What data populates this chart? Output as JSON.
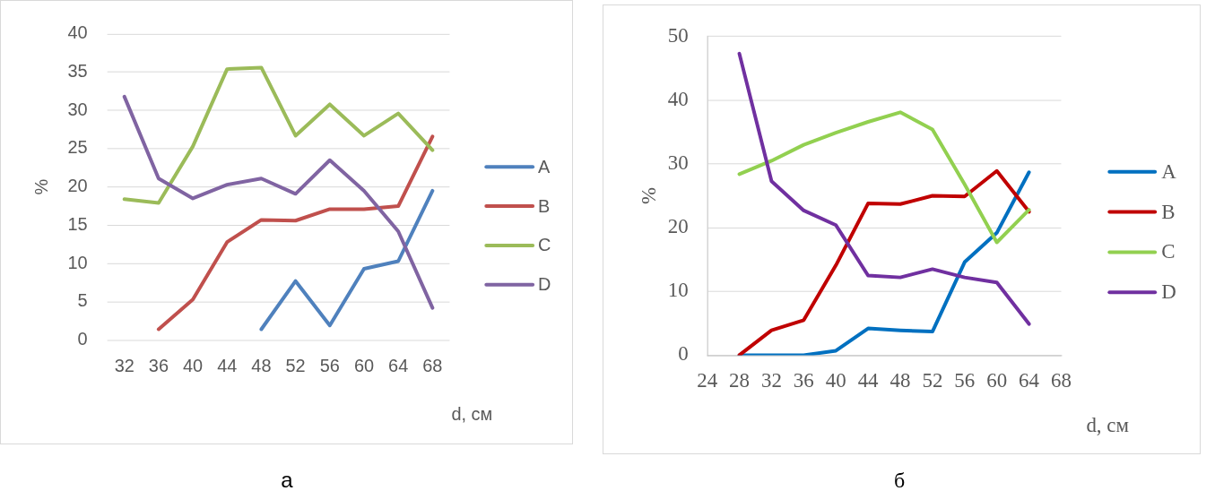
{
  "chart_data": [
    {
      "type": "line",
      "ylabel": "%",
      "xlabel": "d, см",
      "categories": [
        "32",
        "36",
        "40",
        "44",
        "48",
        "52",
        "56",
        "60",
        "64",
        "68"
      ],
      "series": [
        {
          "name": "A",
          "color": "#4f81bd",
          "values": [
            null,
            null,
            null,
            null,
            1.4,
            7.7,
            1.9,
            9.3,
            10.3,
            19.5
          ]
        },
        {
          "name": "B",
          "color": "#c0504d",
          "values": [
            null,
            1.4,
            5.3,
            12.8,
            15.7,
            15.6,
            17.1,
            17.1,
            17.5,
            26.6
          ]
        },
        {
          "name": "C",
          "color": "#9bbb59",
          "values": [
            18.4,
            17.9,
            25.3,
            35.4,
            35.6,
            26.7,
            30.8,
            26.7,
            29.6,
            24.8
          ]
        },
        {
          "name": "D",
          "color": "#8064a2",
          "values": [
            31.8,
            21.1,
            18.5,
            20.3,
            21.1,
            19.1,
            23.5,
            19.5,
            14.2,
            4.2
          ]
        }
      ],
      "ylim": [
        0,
        40
      ],
      "yticks": [
        0,
        5,
        10,
        15,
        20,
        25,
        30,
        35,
        40
      ],
      "grid": "y",
      "legend": "right",
      "marker": "none",
      "annotations": [
        "а"
      ]
    },
    {
      "type": "line",
      "ylabel": "%",
      "xlabel": "d, см",
      "x": [
        28,
        32,
        36,
        40,
        44,
        48,
        52,
        56,
        60,
        64
      ],
      "xlim": [
        24,
        68
      ],
      "xticks": [
        24,
        28,
        32,
        36,
        40,
        44,
        48,
        52,
        56,
        60,
        64,
        68
      ],
      "ylim": [
        0,
        50
      ],
      "yticks": [
        0,
        10,
        20,
        30,
        40,
        50
      ],
      "series": [
        {
          "name": "A",
          "color": "#0070c0",
          "values": [
            0,
            0,
            0,
            0.7,
            4.2,
            3.9,
            3.7,
            14.6,
            19.2,
            28.7
          ]
        },
        {
          "name": "B",
          "color": "#c00000",
          "values": [
            0,
            3.9,
            5.5,
            14.1,
            23.8,
            23.7,
            25.0,
            24.9,
            28.9,
            22.5
          ]
        },
        {
          "name": "C",
          "color": "#92d050",
          "values": [
            28.4,
            30.5,
            33.0,
            34.9,
            36.6,
            38.1,
            35.4,
            26.8,
            17.7,
            22.8
          ]
        },
        {
          "name": "D",
          "color": "#7030a0",
          "values": [
            47.3,
            27.3,
            22.7,
            20.4,
            12.5,
            12.2,
            13.5,
            12.2,
            11.4,
            4.9
          ]
        }
      ],
      "grid": "y",
      "legend": "right",
      "marker": "none",
      "annotations": [
        "б"
      ]
    }
  ]
}
